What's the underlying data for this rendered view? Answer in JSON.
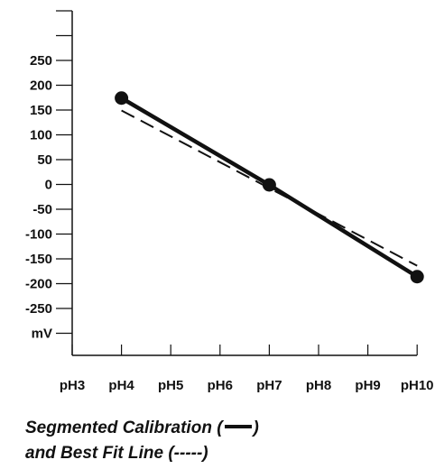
{
  "chart_data": {
    "type": "line",
    "y_tick_labels": [
      "250",
      "200",
      "150",
      "100",
      "50",
      "0",
      "-50",
      "-100",
      "-150",
      "-200",
      "-250",
      "mV"
    ],
    "x_tick_labels": [
      "pH3",
      "pH4",
      "pH5",
      "pH6",
      "pH7",
      "pH8",
      "pH9",
      "pH10"
    ],
    "x": [
      4,
      7,
      10
    ],
    "series": [
      {
        "name": "Segmented Calibration",
        "style": "solid",
        "color": "#111111",
        "markers": true,
        "values": [
          175,
          0,
          -185
        ]
      },
      {
        "name": "Best Fit Line",
        "style": "dashed",
        "color": "#111111",
        "markers": false,
        "x": [
          4,
          10
        ],
        "values": [
          150,
          -163
        ]
      }
    ],
    "xlim": [
      3,
      10
    ],
    "ylim": [
      -325,
      350
    ],
    "grid": false
  },
  "caption": {
    "line1_prefix": "Segmented Calibration (",
    "line1_suffix": ")",
    "line2": "and Best Fit Line (-----)"
  }
}
